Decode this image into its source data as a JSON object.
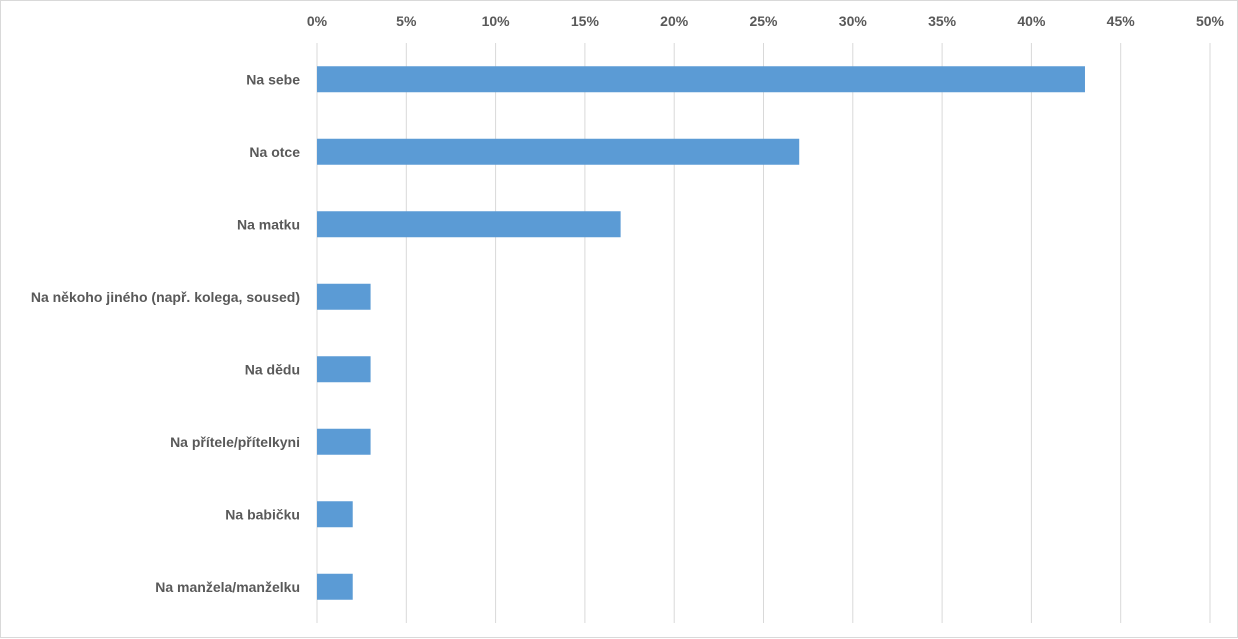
{
  "chart_data": {
    "type": "bar",
    "orientation": "horizontal",
    "title": "",
    "xlabel": "",
    "ylabel": "",
    "xlim": [
      0,
      50
    ],
    "x_ticks": [
      "0%",
      "5%",
      "10%",
      "15%",
      "20%",
      "25%",
      "30%",
      "35%",
      "40%",
      "45%",
      "50%"
    ],
    "x_axis_position": "top",
    "grid": true,
    "legend": "none",
    "bar_color": "#5b9bd5",
    "categories": [
      "Na sebe",
      "Na otce",
      "Na matku",
      "Na někoho jiného (např. kolega, soused)",
      "Na dědu",
      "Na přítele/přítelkyni",
      "Na babičku",
      "Na manžela/manželku"
    ],
    "values": [
      43,
      27,
      17,
      3,
      3,
      3,
      2,
      2
    ]
  }
}
